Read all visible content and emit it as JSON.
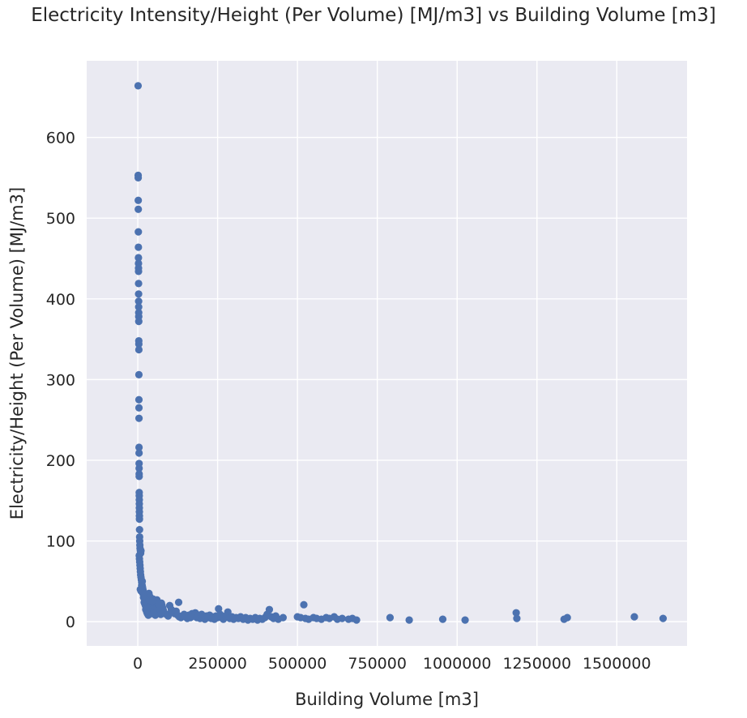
{
  "chart_data": {
    "type": "scatter",
    "title": "Electricity Intensity/Height (Per Volume)  [MJ/m3] vs Building Volume [m3]",
    "xlabel": "Building Volume [m3]",
    "ylabel": "Electricity/Height (Per Volume)  [MJ/m3]",
    "xlim": [
      -160000,
      1720000
    ],
    "ylim": [
      -30,
      695
    ],
    "xticks": [
      0,
      250000,
      500000,
      750000,
      1000000,
      1250000,
      1500000
    ],
    "xtick_labels": [
      "0",
      "250000",
      "500000",
      "750000",
      "1000000",
      "1250000",
      "1500000"
    ],
    "yticks": [
      0,
      100,
      200,
      300,
      400,
      500,
      600
    ],
    "ytick_labels": [
      "0",
      "100",
      "200",
      "300",
      "400",
      "500",
      "600"
    ],
    "grid": true,
    "background": "#eaeaf2",
    "marker_color": "#4c72b0",
    "points": [
      [
        1000,
        664
      ],
      [
        1200,
        553
      ],
      [
        1300,
        550
      ],
      [
        1500,
        522
      ],
      [
        1600,
        511
      ],
      [
        1800,
        483
      ],
      [
        2000,
        464
      ],
      [
        2100,
        451
      ],
      [
        2200,
        444
      ],
      [
        2300,
        438
      ],
      [
        2400,
        434
      ],
      [
        2500,
        419
      ],
      [
        2600,
        406
      ],
      [
        2700,
        397
      ],
      [
        2800,
        390
      ],
      [
        2900,
        383
      ],
      [
        3000,
        378
      ],
      [
        3100,
        372
      ],
      [
        3200,
        348
      ],
      [
        3300,
        344
      ],
      [
        3400,
        337
      ],
      [
        3500,
        306
      ],
      [
        3600,
        275
      ],
      [
        3700,
        265
      ],
      [
        3800,
        252
      ],
      [
        3900,
        216
      ],
      [
        4000,
        209
      ],
      [
        4100,
        196
      ],
      [
        4200,
        190
      ],
      [
        4300,
        183
      ],
      [
        4400,
        180
      ],
      [
        4500,
        160
      ],
      [
        4600,
        156
      ],
      [
        4700,
        151
      ],
      [
        4800,
        146
      ],
      [
        4900,
        141
      ],
      [
        5000,
        136
      ],
      [
        5100,
        131
      ],
      [
        5200,
        127
      ],
      [
        5500,
        114
      ],
      [
        5800,
        105
      ],
      [
        6000,
        100
      ],
      [
        6500,
        95
      ],
      [
        7000,
        91
      ],
      [
        8000,
        88
      ],
      [
        9000,
        85
      ],
      [
        10000,
        88
      ],
      [
        4500,
        82
      ],
      [
        5200,
        78
      ],
      [
        6000,
        74
      ],
      [
        6800,
        70
      ],
      [
        7500,
        66
      ],
      [
        8200,
        62
      ],
      [
        9000,
        58
      ],
      [
        10000,
        55
      ],
      [
        11000,
        52
      ],
      [
        12000,
        49
      ],
      [
        13000,
        46
      ],
      [
        14000,
        44
      ],
      [
        15000,
        42
      ],
      [
        16000,
        40
      ],
      [
        17000,
        38
      ],
      [
        18000,
        36
      ],
      [
        19000,
        34
      ],
      [
        20000,
        33
      ],
      [
        21000,
        31
      ],
      [
        22000,
        30
      ],
      [
        23000,
        29
      ],
      [
        25000,
        28
      ],
      [
        27000,
        27
      ],
      [
        8000,
        40
      ],
      [
        10000,
        38
      ],
      [
        12000,
        45
      ],
      [
        14000,
        50
      ],
      [
        16000,
        35
      ],
      [
        18000,
        30
      ],
      [
        20000,
        24
      ],
      [
        22000,
        22
      ],
      [
        24000,
        20
      ],
      [
        26000,
        18
      ],
      [
        28000,
        26
      ],
      [
        30000,
        24
      ],
      [
        32000,
        22
      ],
      [
        34000,
        20
      ],
      [
        36000,
        18
      ],
      [
        38000,
        16
      ],
      [
        40000,
        14
      ],
      [
        42000,
        12
      ],
      [
        44000,
        10
      ],
      [
        46000,
        24
      ],
      [
        48000,
        22
      ],
      [
        50000,
        20
      ],
      [
        52000,
        18
      ],
      [
        54000,
        16
      ],
      [
        56000,
        14
      ],
      [
        58000,
        12
      ],
      [
        60000,
        27
      ],
      [
        62000,
        24
      ],
      [
        64000,
        21
      ],
      [
        66000,
        18
      ],
      [
        68000,
        15
      ],
      [
        70000,
        12
      ],
      [
        72000,
        9
      ],
      [
        74000,
        23
      ],
      [
        76000,
        20
      ],
      [
        78000,
        17
      ],
      [
        80000,
        14
      ],
      [
        35000,
        35
      ],
      [
        38000,
        31
      ],
      [
        42000,
        28
      ],
      [
        45000,
        25
      ],
      [
        48000,
        28
      ],
      [
        55000,
        26
      ],
      [
        60000,
        24
      ],
      [
        65000,
        22
      ],
      [
        25000,
        15
      ],
      [
        28000,
        12
      ],
      [
        30000,
        10
      ],
      [
        33000,
        8
      ],
      [
        36000,
        27
      ],
      [
        40000,
        26
      ],
      [
        44000,
        25
      ],
      [
        50000,
        10
      ],
      [
        55000,
        8
      ],
      [
        85000,
        10
      ],
      [
        90000,
        9
      ],
      [
        95000,
        7
      ],
      [
        100000,
        20
      ],
      [
        105000,
        15
      ],
      [
        110000,
        12
      ],
      [
        115000,
        10
      ],
      [
        120000,
        13
      ],
      [
        125000,
        8
      ],
      [
        128000,
        24
      ],
      [
        130000,
        6
      ],
      [
        135000,
        5
      ],
      [
        140000,
        7
      ],
      [
        145000,
        9
      ],
      [
        150000,
        6
      ],
      [
        155000,
        4
      ],
      [
        160000,
        8
      ],
      [
        165000,
        5
      ],
      [
        170000,
        10
      ],
      [
        175000,
        7
      ],
      [
        180000,
        11
      ],
      [
        185000,
        5
      ],
      [
        190000,
        8
      ],
      [
        195000,
        4
      ],
      [
        200000,
        9
      ],
      [
        205000,
        6
      ],
      [
        210000,
        3
      ],
      [
        215000,
        7
      ],
      [
        220000,
        5
      ],
      [
        225000,
        8
      ],
      [
        230000,
        4
      ],
      [
        235000,
        6
      ],
      [
        240000,
        3
      ],
      [
        245000,
        7
      ],
      [
        250000,
        5
      ],
      [
        253000,
        16
      ],
      [
        258000,
        9
      ],
      [
        262000,
        5
      ],
      [
        268000,
        3
      ],
      [
        275000,
        7
      ],
      [
        282000,
        12
      ],
      [
        288000,
        4
      ],
      [
        295000,
        6
      ],
      [
        300000,
        3
      ],
      [
        308000,
        5
      ],
      [
        315000,
        4
      ],
      [
        322000,
        6
      ],
      [
        330000,
        3
      ],
      [
        338000,
        5
      ],
      [
        345000,
        2
      ],
      [
        352000,
        4
      ],
      [
        360000,
        3
      ],
      [
        368000,
        5
      ],
      [
        375000,
        2
      ],
      [
        382000,
        4
      ],
      [
        390000,
        3
      ],
      [
        398000,
        5
      ],
      [
        405000,
        9
      ],
      [
        412000,
        15
      ],
      [
        418000,
        6
      ],
      [
        425000,
        4
      ],
      [
        432000,
        7
      ],
      [
        440000,
        3
      ],
      [
        455000,
        5
      ],
      [
        500000,
        6
      ],
      [
        510000,
        5
      ],
      [
        520000,
        21
      ],
      [
        525000,
        4
      ],
      [
        535000,
        3
      ],
      [
        550000,
        5
      ],
      [
        560000,
        4
      ],
      [
        575000,
        3
      ],
      [
        590000,
        5
      ],
      [
        600000,
        4
      ],
      [
        615000,
        6
      ],
      [
        625000,
        3
      ],
      [
        640000,
        4
      ],
      [
        660000,
        3
      ],
      [
        672000,
        4
      ],
      [
        685000,
        2
      ],
      [
        790000,
        5
      ],
      [
        850000,
        2
      ],
      [
        955000,
        3
      ],
      [
        1025000,
        2
      ],
      [
        1185000,
        11
      ],
      [
        1187000,
        4
      ],
      [
        1335000,
        3
      ],
      [
        1345000,
        5
      ],
      [
        1555000,
        6
      ],
      [
        1645000,
        4
      ]
    ]
  }
}
